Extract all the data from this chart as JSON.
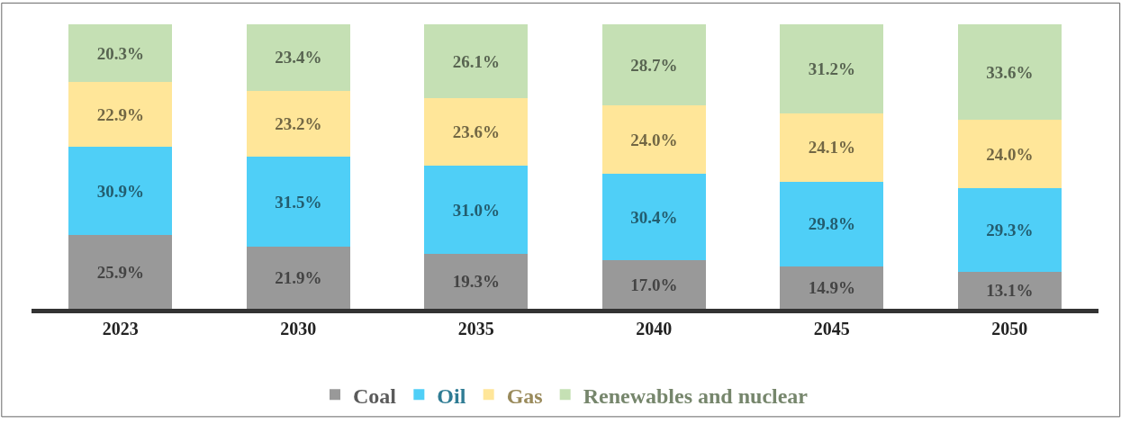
{
  "chart_data": {
    "type": "bar",
    "stacked": true,
    "legend": "bottom",
    "tick_labels": "x",
    "categories": [
      "2023",
      "2030",
      "2035",
      "2040",
      "2045",
      "2050"
    ],
    "series": [
      {
        "name": "Coal",
        "color": "#999999",
        "values": [
          25.9,
          21.9,
          19.3,
          17.0,
          14.9,
          13.1
        ],
        "value_labels": [
          "25.9%",
          "21.9%",
          "19.3%",
          "17.0%",
          "14.9%",
          "13.1%"
        ]
      },
      {
        "name": "Oil",
        "color": "#4FCFF7",
        "values": [
          30.9,
          31.5,
          31.0,
          30.4,
          29.8,
          29.3
        ],
        "value_labels": [
          "30.9%",
          "31.5%",
          "31.0%",
          "30.4%",
          "29.8%",
          "29.3%"
        ]
      },
      {
        "name": "Gas",
        "color": "#FFE699",
        "values": [
          22.9,
          23.2,
          23.6,
          24.0,
          24.1,
          24.0
        ],
        "value_labels": [
          "22.9%",
          "23.2%",
          "23.6%",
          "24.0%",
          "24.1%",
          "24.0%"
        ]
      },
      {
        "name": "Renewables and nuclear",
        "color": "#C5E0B4",
        "values": [
          20.3,
          23.4,
          26.1,
          28.7,
          31.2,
          33.6
        ],
        "value_labels": [
          "20.3%",
          "23.4%",
          "26.1%",
          "28.7%",
          "31.2%",
          "33.6%"
        ]
      }
    ]
  }
}
